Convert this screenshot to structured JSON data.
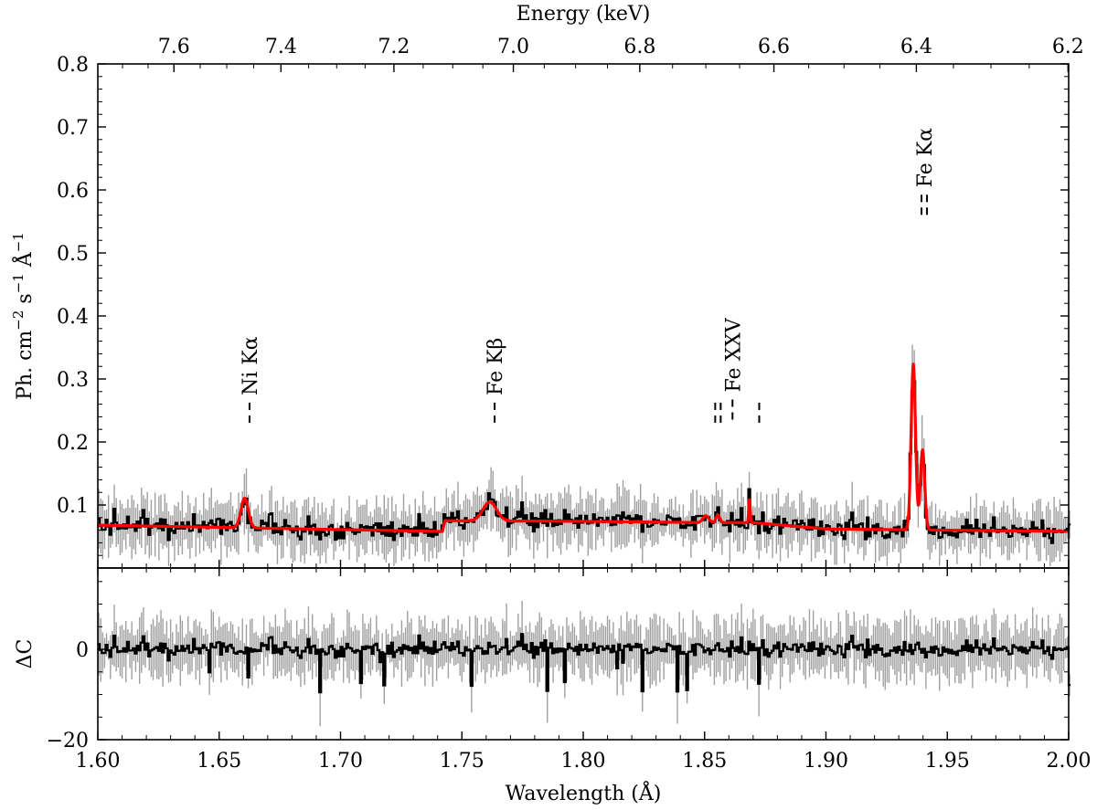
{
  "chart_data": [
    {
      "panel": "spectrum",
      "type": "line",
      "xlabel": "Wavelength (Å)",
      "ylabel": "Ph. cm⁻² s⁻¹ Å⁻¹",
      "xlim": [
        1.6,
        2.0
      ],
      "ylim": [
        0.0,
        0.8
      ],
      "xticks": [
        "1.60",
        "1.65",
        "1.70",
        "1.75",
        "1.80",
        "1.85",
        "1.90",
        "1.95",
        "2.00"
      ],
      "yticks": [
        "0.1",
        "0.2",
        "0.3",
        "0.4",
        "0.5",
        "0.6",
        "0.7",
        "0.8"
      ],
      "top_axis": {
        "label": "Energy (keV)",
        "ticks": [
          {
            "value": 7.6,
            "label": "7.6"
          },
          {
            "value": 7.4,
            "label": "7.4"
          },
          {
            "value": 7.2,
            "label": "7.2"
          },
          {
            "value": 7.0,
            "label": "7.0"
          },
          {
            "value": 6.8,
            "label": "6.8"
          },
          {
            "value": 6.6,
            "label": "6.6"
          },
          {
            "value": 6.4,
            "label": "6.4"
          },
          {
            "value": 6.2,
            "label": "6.2"
          }
        ]
      },
      "series": [
        {
          "role": "data",
          "style": "step with error bars",
          "color": "#000000",
          "errorbar_color": "#a0a0a0"
        },
        {
          "role": "model",
          "style": "line",
          "color": "#ff0000",
          "continuum": [
            [
              1.6,
              0.068
            ],
            [
              1.742,
              0.058
            ],
            [
              1.743,
              0.075
            ],
            [
              1.8,
              0.074
            ],
            [
              1.85,
              0.072
            ],
            [
              1.87,
              0.072
            ],
            [
              1.9,
              0.062
            ],
            [
              2.0,
              0.058
            ]
          ],
          "lines": [
            {
              "center": 1.6605,
              "amp": 0.047,
              "sigma": 0.0015
            },
            {
              "center": 1.7615,
              "amp": 0.03,
              "sigma": 0.0028
            },
            {
              "center": 1.8505,
              "amp": 0.011,
              "sigma": 0.0012
            },
            {
              "center": 1.8555,
              "amp": 0.012,
              "sigma": 0.0008
            },
            {
              "center": 1.8685,
              "amp": 0.038,
              "sigma": 0.0003
            },
            {
              "center": 1.936,
              "amp": 0.263,
              "sigma": 0.0009
            },
            {
              "center": 1.9398,
              "amp": 0.127,
              "sigma": 0.0009
            }
          ]
        }
      ],
      "annotations": [
        {
          "text": "Ni Kα",
          "x": 1.6625,
          "y": 0.245,
          "markers": 1
        },
        {
          "text": "Fe Kβ",
          "x": 1.7635,
          "y": 0.245,
          "markers": 1
        },
        {
          "text": "Fe XXV",
          "x": 1.8615,
          "y": 0.25,
          "markers": 1
        },
        {
          "text": "Fe Kα",
          "x": 1.9405,
          "y": 0.575,
          "markers": 2
        }
      ],
      "extra_markers": [
        {
          "x": 1.8555,
          "y": 0.245,
          "count": 2
        },
        {
          "x": 1.8725,
          "y": 0.245,
          "count": 1
        }
      ]
    },
    {
      "panel": "residuals",
      "type": "line",
      "xlabel": "Wavelength (Å)",
      "ylabel": "ΔC",
      "xlim": [
        1.6,
        2.0
      ],
      "ylim": [
        -20,
        18
      ],
      "yticks": [
        "−20",
        "0"
      ],
      "series": [
        {
          "role": "residuals",
          "style": "step with error bars",
          "color": "#000000",
          "errorbar_color": "#a0a0a0"
        }
      ]
    }
  ]
}
